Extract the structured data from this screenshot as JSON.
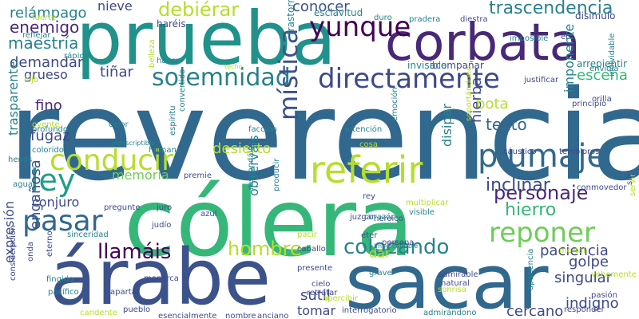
{
  "words": [
    {
      "text": "reverencia",
      "color": "#31688e"
    },
    {
      "text": "cólera",
      "color": "#35b779"
    },
    {
      "text": "prueba",
      "color": "#21918c"
    },
    {
      "text": "sacar",
      "color": "#31688e"
    },
    {
      "text": "árabe",
      "color": "#3b528b"
    },
    {
      "text": "corbata",
      "color": "#482878"
    },
    {
      "text": "plumaje",
      "color": "#31688e"
    },
    {
      "text": "referir",
      "color": "#b5de2b"
    },
    {
      "text": "conducir",
      "color": "#b5de2b"
    },
    {
      "text": "directamente",
      "color": "#3e4989"
    },
    {
      "text": "solemnidad",
      "color": "#26828e"
    },
    {
      "text": "mística",
      "color": "#3b528b"
    },
    {
      "text": "personaje",
      "color": "#482878"
    },
    {
      "text": "reponer",
      "color": "#6ece58"
    },
    {
      "text": "pasar",
      "color": "#31688e"
    },
    {
      "text": "ley",
      "color": "#1f9e89"
    },
    {
      "text": "llamáis",
      "color": "#440154"
    },
    {
      "text": "hombre",
      "color": "#b5de2b"
    },
    {
      "text": "colocando",
      "color": "#26828e"
    },
    {
      "text": "yunque",
      "color": "#440154"
    },
    {
      "text": "trascendencia",
      "color": "#26828e"
    },
    {
      "text": "hierro",
      "color": "#35b779"
    },
    {
      "text": "debiérar",
      "color": "#b5de2b"
    },
    {
      "text": "relámpago",
      "color": "#26828e"
    },
    {
      "text": "maestría",
      "color": "#26828e"
    },
    {
      "text": "enemigo",
      "color": "#482878"
    },
    {
      "text": "demandar",
      "color": "#3e4989"
    },
    {
      "text": "grueso",
      "color": "#3e4989"
    },
    {
      "text": "tiñar",
      "color": "#3e4989"
    },
    {
      "text": "conocer",
      "color": "#3b528b"
    },
    {
      "text": "nieve",
      "color": "#3e4989"
    },
    {
      "text": "escena",
      "color": "#35b779"
    },
    {
      "text": "inclinar",
      "color": "#3e4989"
    },
    {
      "text": "texto",
      "color": "#31688e"
    },
    {
      "text": "bota",
      "color": "#b5de2b"
    },
    {
      "text": "fino",
      "color": "#482878"
    },
    {
      "text": "fugaz",
      "color": "#3e4989"
    },
    {
      "text": "desierto",
      "color": "#b5de2b"
    },
    {
      "text": "memoria",
      "color": "#6ece58"
    },
    {
      "text": "conjuro",
      "color": "#3e4989"
    },
    {
      "text": "engañosa",
      "color": "#3b528b"
    },
    {
      "text": "expresión",
      "color": "#3e4989"
    },
    {
      "text": "paciencia",
      "color": "#3e4989"
    },
    {
      "text": "golpe",
      "color": "#3e4989"
    },
    {
      "text": "singular",
      "color": "#3e4989"
    },
    {
      "text": "indigno",
      "color": "#3e4989"
    },
    {
      "text": "cercano",
      "color": "#3e4989"
    },
    {
      "text": "tomar",
      "color": "#3e4989"
    },
    {
      "text": "sutil",
      "color": "#3e4989"
    },
    {
      "text": "dar",
      "color": "#b5de2b"
    },
    {
      "text": "hierba",
      "color": "#3e4989"
    },
    {
      "text": "disipar",
      "color": "#26828e"
    },
    {
      "text": "imponente",
      "color": "#26828e"
    },
    {
      "text": "trasparente",
      "color": "#26828e"
    },
    {
      "text": "observáis",
      "color": "#26828e"
    },
    {
      "text": "esclavitud",
      "color": "#26828e"
    },
    {
      "text": "trastorno",
      "color": "#26828e"
    },
    {
      "text": "haréis",
      "color": "#3e4989"
    },
    {
      "text": "acompañar",
      "color": "#3e4989"
    },
    {
      "text": "invisible",
      "color": "#26828e"
    },
    {
      "text": "justificar",
      "color": "#3e4989"
    },
    {
      "text": "arrepientir",
      "color": "#26828e"
    },
    {
      "text": "envidia",
      "color": "#26828e"
    },
    {
      "text": "principio",
      "color": "#3e4989"
    },
    {
      "text": "disimulo",
      "color": "#3e4989"
    },
    {
      "text": "imposible",
      "color": "#26828e"
    },
    {
      "text": "diestra",
      "color": "#3e4989"
    },
    {
      "text": "pradera",
      "color": "#26828e"
    },
    {
      "text": "duro",
      "color": "#26828e"
    },
    {
      "text": "fuerte",
      "color": "#b5de2b"
    },
    {
      "text": "reflejar",
      "color": "#26828e"
    },
    {
      "text": "hijo",
      "color": "#b5de2b"
    },
    {
      "text": "rápido",
      "color": "#26828e"
    },
    {
      "text": "belleza",
      "color": "#b5de2b"
    },
    {
      "text": "hacer",
      "color": "#26828e"
    },
    {
      "text": "oyente",
      "color": "#b5de2b"
    },
    {
      "text": "profundo",
      "color": "#26828e"
    },
    {
      "text": "colorido",
      "color": "#26828e"
    },
    {
      "text": "humano",
      "color": "#26828e"
    },
    {
      "text": "color",
      "color": "#26828e"
    },
    {
      "text": "convertido",
      "color": "#26828e"
    },
    {
      "text": "facción",
      "color": "#26828e"
    },
    {
      "text": "intención",
      "color": "#26828e"
    },
    {
      "text": "emoción",
      "color": "#26828e"
    },
    {
      "text": "soportándono",
      "color": "#b5de2b"
    },
    {
      "text": "cáustico",
      "color": "#3e4989"
    },
    {
      "text": "tembloros",
      "color": "#3e4989"
    },
    {
      "text": "orilla",
      "color": "#3e4989"
    },
    {
      "text": "inolvidable",
      "color": "#26828e"
    },
    {
      "text": "espíritu",
      "color": "#26828e"
    },
    {
      "text": "henos",
      "color": "#26828e"
    },
    {
      "text": "agua",
      "color": "#26828e"
    },
    {
      "text": "premie",
      "color": "#3e4989"
    },
    {
      "text": "conmovedor",
      "color": "#3e4989"
    },
    {
      "text": "juzgar",
      "color": "#3e4989"
    },
    {
      "text": "cosa",
      "color": "#b5de2b"
    },
    {
      "text": "multiplicar",
      "color": "#b5de2b"
    },
    {
      "text": "visible",
      "color": "#26828e"
    },
    {
      "text": "heroico",
      "color": "#3e4989"
    },
    {
      "text": "rey",
      "color": "#3e4989"
    },
    {
      "text": "corazón",
      "color": "#26828e"
    },
    {
      "text": "servir",
      "color": "#b5de2b"
    },
    {
      "text": "pregunte",
      "color": "#3e4989"
    },
    {
      "text": "juro",
      "color": "#3e4989"
    },
    {
      "text": "azul",
      "color": "#3e4989"
    },
    {
      "text": "judío",
      "color": "#3e4989"
    },
    {
      "text": "respondáis",
      "color": "#26828e"
    },
    {
      "text": "producir",
      "color": "#26828e"
    },
    {
      "text": "sinceridad",
      "color": "#26828e"
    },
    {
      "text": "caballo",
      "color": "#3e4989"
    },
    {
      "text": "pacir",
      "color": "#b5de2b"
    },
    {
      "text": "éter",
      "color": "#3e4989"
    },
    {
      "text": "persona",
      "color": "#3e4989"
    },
    {
      "text": "imperceptible",
      "color": "#26828e"
    },
    {
      "text": "mortal",
      "color": "#b5de2b"
    },
    {
      "text": "vehemente",
      "color": "#b5de2b"
    },
    {
      "text": "onda",
      "color": "#3e4989"
    },
    {
      "text": "eterno",
      "color": "#3e4989"
    },
    {
      "text": "consideración",
      "color": "#3e4989"
    },
    {
      "text": "fingido",
      "color": "#26828e"
    },
    {
      "text": "monarca",
      "color": "#3e4989"
    },
    {
      "text": "presente",
      "color": "#3e4989"
    },
    {
      "text": "grave",
      "color": "#26828e"
    },
    {
      "text": "admirable",
      "color": "#3e4989"
    },
    {
      "text": "natural",
      "color": "#3e4989"
    },
    {
      "text": "sonrisa",
      "color": "#b5de2b"
    },
    {
      "text": "apariencia",
      "color": "#26828e"
    },
    {
      "text": "pasión",
      "color": "#3e4989"
    },
    {
      "text": "responder",
      "color": "#3e4989"
    },
    {
      "text": "pacífico",
      "color": "#26828e"
    },
    {
      "text": "apartar",
      "color": "#3e4989"
    },
    {
      "text": "cielo",
      "color": "#3e4989"
    },
    {
      "text": "retratar",
      "color": "#3e4989"
    },
    {
      "text": "apercibir",
      "color": "#b5de2b"
    },
    {
      "text": "interrogatorio",
      "color": "#3e4989"
    },
    {
      "text": "admirándono",
      "color": "#26828e"
    },
    {
      "text": "candente",
      "color": "#b5de2b"
    },
    {
      "text": "pueblo",
      "color": "#3e4989"
    },
    {
      "text": "esencialmente",
      "color": "#3e4989"
    },
    {
      "text": "nombre",
      "color": "#3e4989"
    },
    {
      "text": "anciano",
      "color": "#3e4989"
    },
    {
      "text": "él",
      "color": "#3e4989"
    },
    {
      "text": "sin",
      "color": "#3e4989"
    },
    {
      "text": "techo",
      "color": "#b5de2b"
    },
    {
      "text": "indescriptible",
      "color": "#26828e"
    }
  ]
}
